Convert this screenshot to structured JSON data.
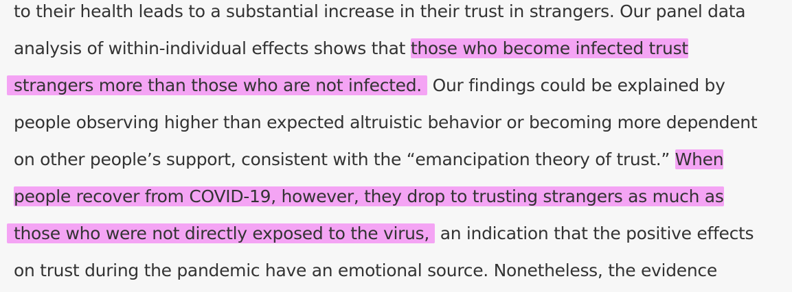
{
  "article": {
    "paragraph": {
      "line1": "to their health leads to a substantial increase in their trust in strangers. Our panel data",
      "line2_plain": "analysis of within-individual effects shows that ",
      "line2_highlight": "those who become infected trust",
      "line3_highlight": "strangers more than those who are not infected.",
      "line3_plain": " Our findings could be explained by",
      "line4": "people observing higher than expected altruistic behavior or becoming more dependent",
      "line5_plain": "on other people’s support, consistent with the “emancipation theory of trust.” ",
      "line5_highlight": "When",
      "line6_highlight": "people recover from COVID-19, however, they drop to trusting strangers as much as",
      "line7_highlight": "those who were not directly exposed to the virus,",
      "line7_plain": " an indication that the positive effects",
      "line8": "on trust during the pandemic have an emotional source. Nonetheless, the evidence"
    },
    "colors": {
      "highlight": "#f4a4f4",
      "text": "#333333",
      "background": "#f7f7f7"
    }
  }
}
